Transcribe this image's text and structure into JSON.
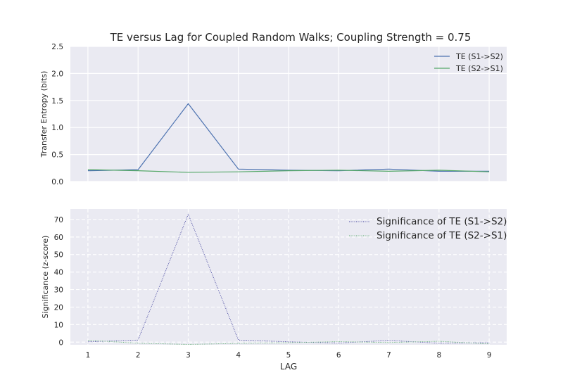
{
  "title": "TE versus Lag for Coupled Random Walks; Coupling Strength = 0.75",
  "colors": {
    "background": "#eaeaf2",
    "grid": "#ffffff",
    "series_blue": "#4c72b0",
    "series_green": "#55a868",
    "series_dotted_blue": "#3b3b9a",
    "series_dotted_green": "#55a868"
  },
  "chart_data": [
    {
      "type": "line",
      "x": [
        1,
        2,
        3,
        4,
        5,
        6,
        7,
        8,
        9
      ],
      "xlabel": "",
      "ylabel": "Transfer Entropy (bits)",
      "ylim": [
        0,
        2.5
      ],
      "xlim": [
        0.65,
        9.35
      ],
      "yticks": [
        "0.0",
        "0.5",
        "1.0",
        "1.5",
        "2.0",
        "2.5"
      ],
      "ytick_values": [
        0,
        0.5,
        1.0,
        1.5,
        2.0,
        2.5
      ],
      "grid": "solid",
      "legend": "top-right",
      "series": [
        {
          "name": "TE (S1->S2)",
          "values": [
            0.2,
            0.22,
            1.44,
            0.23,
            0.21,
            0.2,
            0.23,
            0.19,
            0.19
          ],
          "style": "solid"
        },
        {
          "name": "TE (S2->S1)",
          "values": [
            0.22,
            0.2,
            0.17,
            0.18,
            0.2,
            0.21,
            0.19,
            0.21,
            0.18
          ],
          "style": "solid"
        }
      ]
    },
    {
      "type": "line",
      "x": [
        1,
        2,
        3,
        4,
        5,
        6,
        7,
        8,
        9
      ],
      "xlabel": "LAG",
      "ylabel": "Significance (z-score)",
      "ylim": [
        -1.5,
        76
      ],
      "xlim": [
        0.65,
        9.35
      ],
      "xticks": [
        "1",
        "2",
        "3",
        "4",
        "5",
        "6",
        "7",
        "8",
        "9"
      ],
      "yticks": [
        "0",
        "10",
        "20",
        "30",
        "40",
        "50",
        "60",
        "70"
      ],
      "ytick_values": [
        0,
        10,
        20,
        30,
        40,
        50,
        60,
        70
      ],
      "grid": "dashed",
      "legend": "top-right",
      "series": [
        {
          "name": "Significance of TE (S1->S2)",
          "values": [
            0.2,
            1.2,
            73,
            1.2,
            0.2,
            -0.5,
            1.0,
            -0.6,
            -0.3
          ],
          "style": "dotted"
        },
        {
          "name": "Significance of TE (S2->S1)",
          "values": [
            1.1,
            -0.6,
            -1.3,
            -0.7,
            -0.3,
            0.3,
            -0.2,
            0.5,
            -1.0
          ],
          "style": "dotted"
        }
      ]
    }
  ]
}
